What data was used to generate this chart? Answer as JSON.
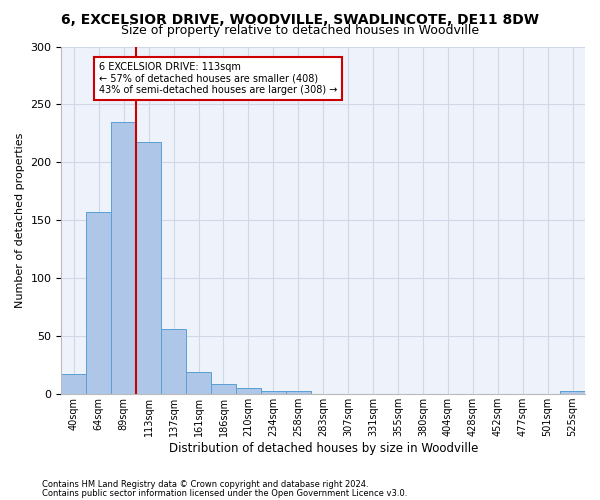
{
  "title": "6, EXCELSIOR DRIVE, WOODVILLE, SWADLINCOTE, DE11 8DW",
  "subtitle": "Size of property relative to detached houses in Woodville",
  "xlabel": "Distribution of detached houses by size in Woodville",
  "ylabel": "Number of detached properties",
  "bar_values": [
    17,
    157,
    235,
    218,
    56,
    19,
    9,
    5,
    3,
    3,
    0,
    0,
    0,
    0,
    0,
    0,
    0,
    0,
    0,
    0,
    3
  ],
  "bar_labels": [
    "40sqm",
    "64sqm",
    "89sqm",
    "113sqm",
    "137sqm",
    "161sqm",
    "186sqm",
    "210sqm",
    "234sqm",
    "258sqm",
    "283sqm",
    "307sqm",
    "331sqm",
    "355sqm",
    "380sqm",
    "404sqm",
    "428sqm",
    "452sqm",
    "477sqm",
    "501sqm",
    "525sqm"
  ],
  "bar_color": "#aec6e8",
  "bar_edge_color": "#5a9fd4",
  "red_line_x": 3,
  "red_line_color": "#cc0000",
  "annotation_line1": "6 EXCELSIOR DRIVE: 113sqm",
  "annotation_line2": "← 57% of detached houses are smaller (408)",
  "annotation_line3": "43% of semi-detached houses are larger (308) →",
  "annotation_box_color": "#ffffff",
  "annotation_box_edge": "#cc0000",
  "ylim": [
    0,
    300
  ],
  "yticks": [
    0,
    50,
    100,
    150,
    200,
    250,
    300
  ],
  "footer_line1": "Contains HM Land Registry data © Crown copyright and database right 2024.",
  "footer_line2": "Contains public sector information licensed under the Open Government Licence v3.0.",
  "grid_color": "#d0d8e8",
  "background_color": "#eef2fa",
  "title_fontsize": 10,
  "subtitle_fontsize": 9
}
